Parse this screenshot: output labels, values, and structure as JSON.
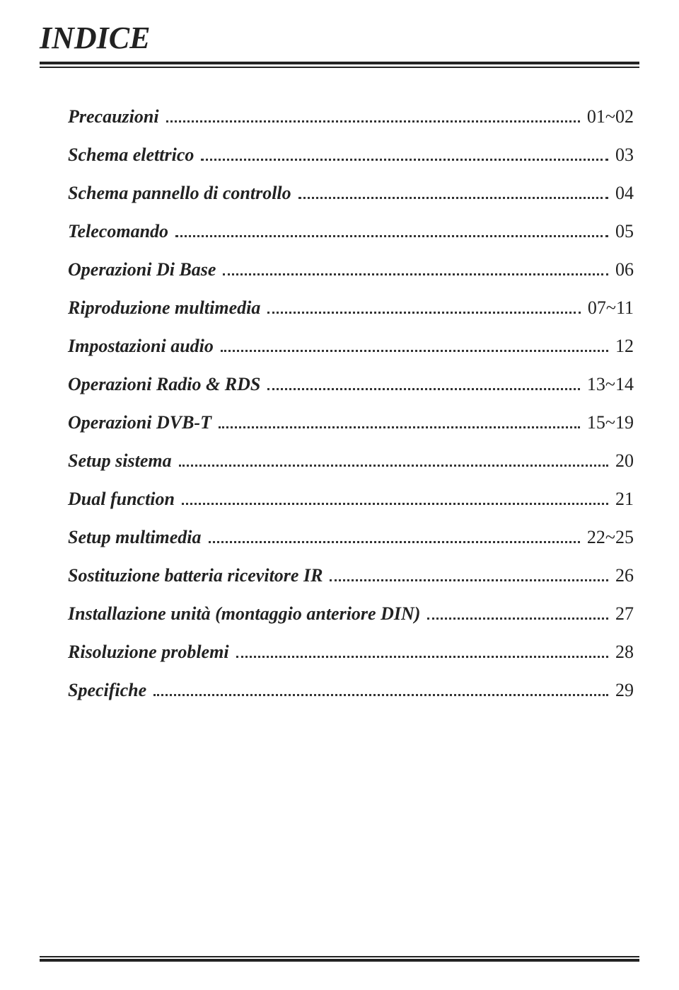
{
  "title": "INDICE",
  "title_fontsize": 44,
  "title_style": "bold italic",
  "rule_color": "#222222",
  "dot_color": "#333333",
  "text_color": "#222222",
  "background_color": "#ffffff",
  "entry_fontsize": 26,
  "entry_label_style": "bold italic",
  "entry_page_style": "normal",
  "font_family": "Times New Roman",
  "entries": [
    {
      "label": "Precauzioni",
      "page": "01~02"
    },
    {
      "label": "Schema elettrico",
      "page": "03"
    },
    {
      "label": "Schema pannello di controllo",
      "page": "04"
    },
    {
      "label": "Telecomando",
      "page": "05"
    },
    {
      "label": "Operazioni Di Base",
      "page": "06"
    },
    {
      "label": "Riproduzione multimedia",
      "page": "07~11"
    },
    {
      "label": "Impostazioni audio",
      "page": "12"
    },
    {
      "label": "Operazioni Radio & RDS",
      "page": "13~14"
    },
    {
      "label": "Operazioni DVB-T",
      "page": "15~19"
    },
    {
      "label": "Setup sistema",
      "page": "20"
    },
    {
      "label": "Dual function",
      "page": "21"
    },
    {
      "label": "Setup multimedia",
      "page": "22~25"
    },
    {
      "label": "Sostituzione batteria ricevitore IR",
      "page": "26"
    },
    {
      "label": "Installazione unità (montaggio anteriore DIN)",
      "page": "27"
    },
    {
      "label": "Risoluzione problemi",
      "page": "28"
    },
    {
      "label": "Specifiche",
      "page": "29"
    }
  ]
}
